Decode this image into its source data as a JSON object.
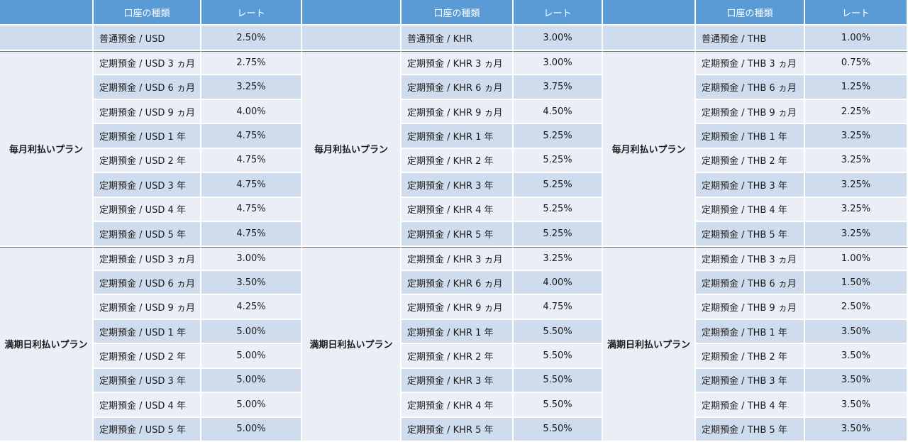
{
  "headers": {
    "account_type": "口座の種類",
    "rate": "レート"
  },
  "plans": [
    "毎月利払いプラン",
    "満期日利払いプラン"
  ],
  "groups": [
    {
      "savings": {
        "name": "普通預金 / USD",
        "rate": "2.50%"
      },
      "monthly": [
        {
          "name": "定期預金 / USD 3 ヵ月",
          "rate": "2.75%"
        },
        {
          "name": "定期預金 / USD 6 ヵ月",
          "rate": "3.25%"
        },
        {
          "name": "定期預金 / USD 9 ヵ月",
          "rate": "4.00%"
        },
        {
          "name": "定期預金 / USD 1 年",
          "rate": "4.75%"
        },
        {
          "name": "定期預金 / USD 2 年",
          "rate": "4.75%"
        },
        {
          "name": "定期預金 / USD 3 年",
          "rate": "4.75%"
        },
        {
          "name": "定期預金 / USD 4 年",
          "rate": "4.75%"
        },
        {
          "name": "定期預金 / USD 5 年",
          "rate": "4.75%"
        }
      ],
      "maturity": [
        {
          "name": "定期預金 / USD 3 ヵ月",
          "rate": "3.00%"
        },
        {
          "name": "定期預金 / USD 6 ヵ月",
          "rate": "3.50%"
        },
        {
          "name": "定期預金 / USD 9 ヵ月",
          "rate": "4.25%"
        },
        {
          "name": "定期預金 / USD 1 年",
          "rate": "5.00%"
        },
        {
          "name": "定期預金 / USD 2 年",
          "rate": "5.00%"
        },
        {
          "name": "定期預金 / USD 3 年",
          "rate": "5.00%"
        },
        {
          "name": "定期預金 / USD 4 年",
          "rate": "5.00%"
        },
        {
          "name": "定期預金 / USD 5 年",
          "rate": "5.00%"
        }
      ]
    },
    {
      "savings": {
        "name": "普通預金 / KHR",
        "rate": "3.00%"
      },
      "monthly": [
        {
          "name": "定期預金 / KHR 3 ヵ月",
          "rate": "3.00%"
        },
        {
          "name": "定期預金 / KHR 6 ヵ月",
          "rate": "3.75%"
        },
        {
          "name": "定期預金 / KHR 9 ヵ月",
          "rate": "4.50%"
        },
        {
          "name": "定期預金 / KHR 1 年",
          "rate": "5.25%"
        },
        {
          "name": "定期預金 / KHR 2 年",
          "rate": "5.25%"
        },
        {
          "name": "定期預金 / KHR 3 年",
          "rate": "5.25%"
        },
        {
          "name": "定期預金 / KHR 4 年",
          "rate": "5.25%"
        },
        {
          "name": "定期預金 / KHR 5 年",
          "rate": "5.25%"
        }
      ],
      "maturity": [
        {
          "name": "定期預金 / KHR 3 ヵ月",
          "rate": "3.25%"
        },
        {
          "name": "定期預金 / KHR 6 ヵ月",
          "rate": "4.00%"
        },
        {
          "name": "定期預金 / KHR 9 ヵ月",
          "rate": "4.75%"
        },
        {
          "name": "定期預金 / KHR 1 年",
          "rate": "5.50%"
        },
        {
          "name": "定期預金 / KHR 2 年",
          "rate": "5.50%"
        },
        {
          "name": "定期預金 / KHR 3 年",
          "rate": "5.50%"
        },
        {
          "name": "定期預金 / KHR 4 年",
          "rate": "5.50%"
        },
        {
          "name": "定期預金 / KHR 5 年",
          "rate": "5.50%"
        }
      ]
    },
    {
      "savings": {
        "name": "普通預金 / THB",
        "rate": "1.00%"
      },
      "monthly": [
        {
          "name": "定期預金 / THB 3 ヵ月",
          "rate": "0.75%"
        },
        {
          "name": "定期預金 / THB 6 ヵ月",
          "rate": "1.25%"
        },
        {
          "name": "定期預金 / THB 9 ヵ月",
          "rate": "2.25%"
        },
        {
          "name": "定期預金 / THB 1 年",
          "rate": "3.25%"
        },
        {
          "name": "定期預金 / THB 2 年",
          "rate": "3.25%"
        },
        {
          "name": "定期預金 / THB 3 年",
          "rate": "3.25%"
        },
        {
          "name": "定期預金 / THB 4 年",
          "rate": "3.25%"
        },
        {
          "name": "定期預金 / THB 5 年",
          "rate": "3.25%"
        }
      ],
      "maturity": [
        {
          "name": "定期預金 / THB 3 ヵ月",
          "rate": "1.00%"
        },
        {
          "name": "定期預金 / THB 6 ヵ月",
          "rate": "1.50%"
        },
        {
          "name": "定期預金 / THB 9 ヵ月",
          "rate": "2.50%"
        },
        {
          "name": "定期預金 / THB 1 年",
          "rate": "3.50%"
        },
        {
          "name": "定期預金 / THB 2 年",
          "rate": "3.50%"
        },
        {
          "name": "定期預金 / THB 3 年",
          "rate": "3.50%"
        },
        {
          "name": "定期預金 / THB 4 年",
          "rate": "3.50%"
        },
        {
          "name": "定期預金 / THB 5 年",
          "rate": "3.50%"
        }
      ]
    }
  ]
}
